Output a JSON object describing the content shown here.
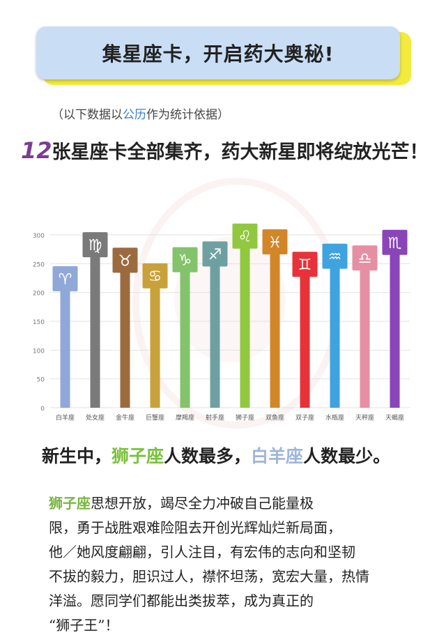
{
  "banner": {
    "title": "集星座卡，开启药大奥秘!"
  },
  "note": {
    "prefix": "（以下数据以",
    "highlight": "公历",
    "suffix": "作为统计依据）"
  },
  "headline": {
    "number": "12",
    "text": "张星座卡全部集齐，药大新星即将绽放光芒！"
  },
  "chart_data": {
    "type": "bar",
    "categories": [
      "白羊座",
      "处女座",
      "金牛座",
      "巨蟹座",
      "摩羯座",
      "射手座",
      "狮子座",
      "双鱼座",
      "双子座",
      "水瓶座",
      "天秤座",
      "天蝎座"
    ],
    "values": [
      207,
      266,
      239,
      212,
      240,
      250,
      281,
      271,
      232,
      246,
      243,
      270
    ],
    "symbols": [
      "♈",
      "♍",
      "♉",
      "♋",
      "♑",
      "♐",
      "♌",
      "♓",
      "♊",
      "♒",
      "♎",
      "♏"
    ],
    "colors": [
      "#8fa8d8",
      "#7a7a7a",
      "#9b6b3f",
      "#c9a13a",
      "#83c36b",
      "#6ea0a2",
      "#91c840",
      "#d2862a",
      "#e8323a",
      "#3fa3df",
      "#e68fa3",
      "#8a45b8"
    ],
    "yticks": [
      0,
      50,
      100,
      150,
      200,
      250,
      300
    ],
    "ylim": [
      0,
      330
    ],
    "grid": true,
    "title": "",
    "xlabel": "",
    "ylabel": ""
  },
  "summary": {
    "p1": "新生中，",
    "leo": "狮子座",
    "p2": "人数最多，",
    "aries": "白羊座",
    "p3": "人数最少。"
  },
  "paragraph": {
    "leo": "狮子座",
    "l1": "思想开放，竭尽全力冲破自己能量极",
    "l2": "限，勇于战胜艰难险阻去开创光辉灿烂新局面，",
    "l3": "他／她风度翩翩，引人注目，有宏伟的志向和坚韧",
    "l4": "不拔的毅力，胆识过人，襟怀坦荡，宽宏大量，热情",
    "l5": "洋溢。愿同学们都能出类拔萃，成为真正的",
    "l6": "“狮子王”！"
  }
}
